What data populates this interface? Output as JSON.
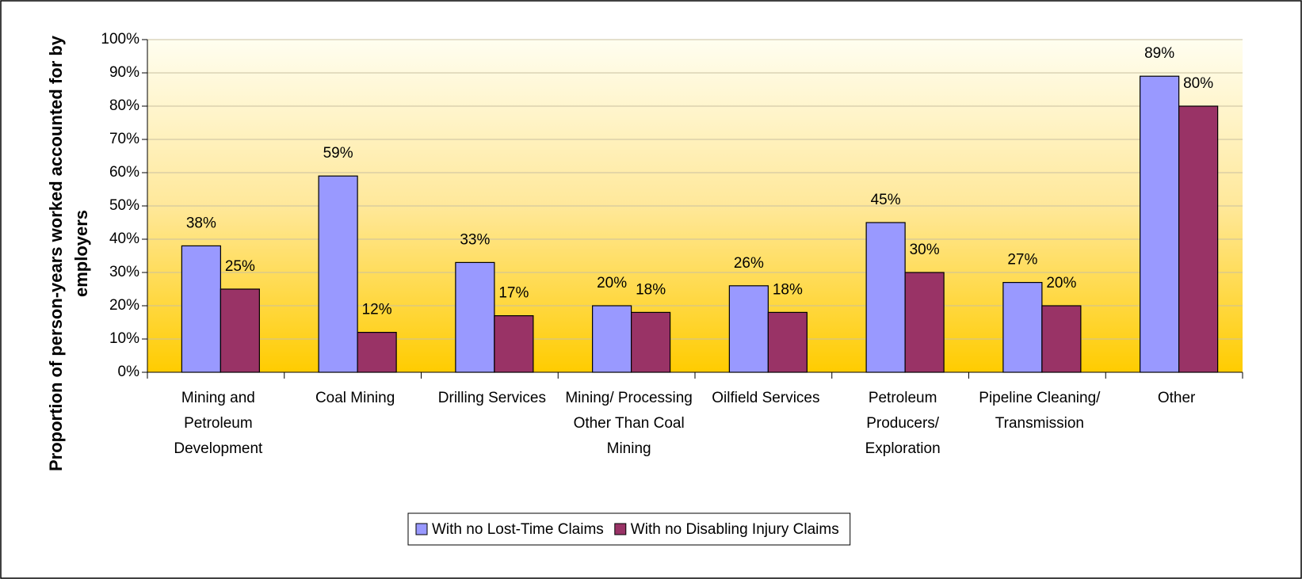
{
  "chart_data": {
    "type": "bar",
    "y_label": "Proportion of person-years worked accounted for by employers",
    "categories": [
      "Mining and Petroleum Development",
      "Coal Mining",
      "Drilling Services",
      "Mining/ Processing Other Than Coal Mining",
      "Oilfield Services",
      "Petroleum Producers/ Exploration",
      "Pipeline Cleaning/ Transmission",
      "Other"
    ],
    "series": [
      {
        "name": "With no Lost-Time Claims",
        "color": "#9999ff",
        "values": [
          38,
          59,
          33,
          20,
          26,
          45,
          27,
          89
        ],
        "value_labels": [
          "38%",
          "59%",
          "33%",
          "20%",
          "26%",
          "45%",
          "27%",
          "89%"
        ]
      },
      {
        "name": "With no Disabling Injury Claims",
        "color": "#993366",
        "values": [
          25,
          12,
          17,
          18,
          18,
          30,
          20,
          80
        ],
        "value_labels": [
          "25%",
          "12%",
          "17%",
          "18%",
          "18%",
          "30%",
          "20%",
          "80%"
        ]
      }
    ],
    "ylim": [
      0,
      100
    ],
    "yticks": [
      {
        "value": 0,
        "label": "0%"
      },
      {
        "value": 10,
        "label": "10%"
      },
      {
        "value": 20,
        "label": "20%"
      },
      {
        "value": 30,
        "label": "30%"
      },
      {
        "value": 40,
        "label": "40%"
      },
      {
        "value": 50,
        "label": "50%"
      },
      {
        "value": 60,
        "label": "60%"
      },
      {
        "value": 70,
        "label": "70%"
      },
      {
        "value": 80,
        "label": "80%"
      },
      {
        "value": 90,
        "label": "90%"
      },
      {
        "value": 100,
        "label": "100%"
      }
    ],
    "grid": true,
    "legend": "bottom"
  }
}
